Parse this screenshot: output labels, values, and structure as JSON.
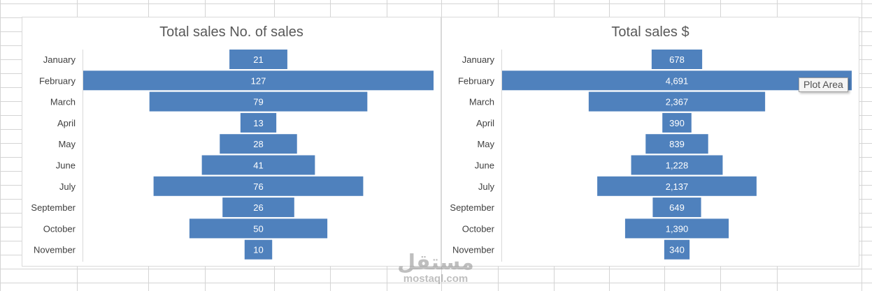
{
  "colors": {
    "bar": "#4f81bd",
    "grid": "#d4d4d4",
    "axis_text": "#404040",
    "title": "#595959"
  },
  "tooltip": {
    "text": "Plot Area"
  },
  "watermark": {
    "arabic": "مستقل",
    "latin": "mostaql.com"
  },
  "chart_data": [
    {
      "type": "bar",
      "orientation": "horizontal",
      "layout": "centered-funnel",
      "title": "Total sales No. of sales",
      "categories": [
        "January",
        "February",
        "March",
        "April",
        "May",
        "June",
        "July",
        "September",
        "October",
        "November"
      ],
      "values": [
        21,
        127,
        79,
        13,
        28,
        41,
        76,
        26,
        50,
        10
      ],
      "labels": [
        "21",
        "127",
        "79",
        "13",
        "28",
        "41",
        "76",
        "26",
        "50",
        "10"
      ],
      "grid": false,
      "legend": "none"
    },
    {
      "type": "bar",
      "orientation": "horizontal",
      "layout": "centered-funnel",
      "title": "Total sales $",
      "categories": [
        "January",
        "February",
        "March",
        "April",
        "May",
        "June",
        "July",
        "September",
        "October",
        "November"
      ],
      "values": [
        678,
        4691,
        2367,
        390,
        839,
        1228,
        2137,
        649,
        1390,
        340
      ],
      "labels": [
        "678",
        "4,691",
        "2,367",
        "390",
        "839",
        "1,228",
        "2,137",
        "649",
        "1,390",
        "340"
      ],
      "grid": false,
      "legend": "none"
    }
  ]
}
